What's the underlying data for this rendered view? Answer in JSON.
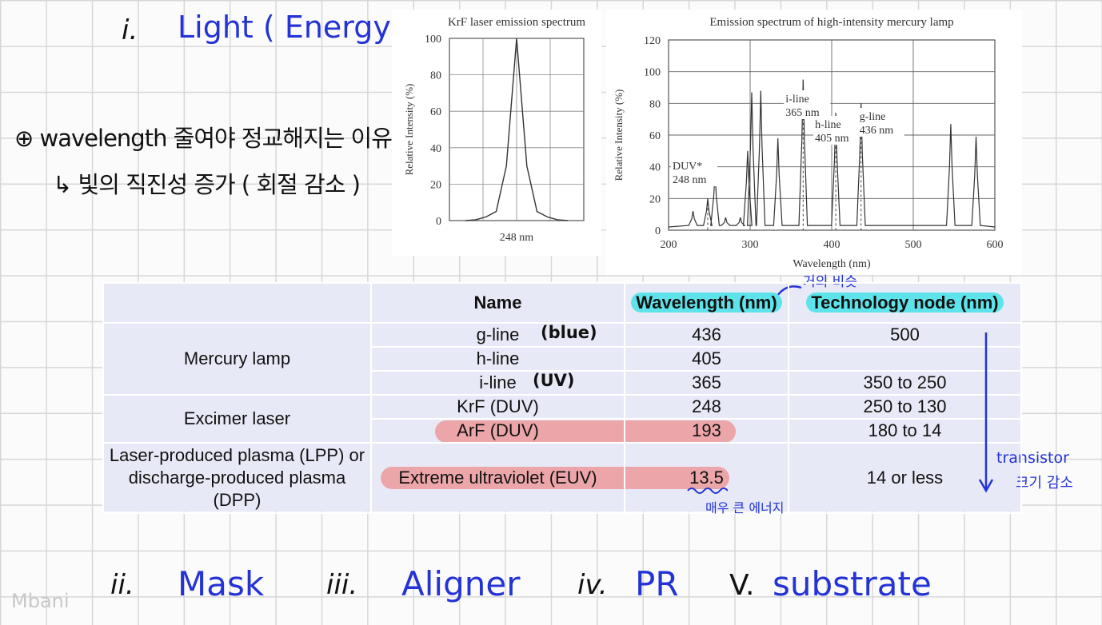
{
  "notes": {
    "heading_1_marker": "i.",
    "heading_1_text": "Light ( Energy )",
    "note_line_1": "⊕ wavelength 줄여야 정교해지는 이유",
    "note_line_2": "↳ 빛의 직진성 증가 ( 회절 감소 )",
    "heading_2_marker": "ii.",
    "heading_2_text": "Mask",
    "heading_3_marker": "iii.",
    "heading_3_text": "Aligner",
    "heading_4_marker": "iv.",
    "heading_4_text": "PR",
    "heading_5_marker": "V.",
    "heading_5_text": "substrate",
    "watermark": "Mbani",
    "annotation_similar": "거의 비슷",
    "annotation_blue": "(blue)",
    "annotation_uv": "(UV)",
    "annotation_energy": "매우 큰 에너지",
    "annotation_transistor_1": "transistor",
    "annotation_transistor_2": "크기 감소"
  },
  "chart_data": [
    {
      "type": "line",
      "title": "KrF  laser emission spectrum",
      "xlabel": "",
      "ylabel": "Relative Intensity (%)",
      "ylim": [
        0,
        100
      ],
      "yticks": [
        0,
        20,
        40,
        60,
        80,
        100
      ],
      "xtick_label": "248 nm",
      "x": [
        0,
        1,
        2,
        3,
        4,
        5,
        6,
        7,
        8,
        9,
        10
      ],
      "series": [
        {
          "values": [
            0,
            0.5,
            2,
            5,
            30,
            100,
            30,
            5,
            2,
            0.5,
            0
          ]
        }
      ],
      "grid": true
    },
    {
      "type": "line",
      "title": "Emission spectrum of high-intensity mercury lamp",
      "xlabel": "Wavelength (nm)",
      "ylabel": "Relative Intensity (%)",
      "xlim": [
        200,
        600
      ],
      "ylim": [
        0,
        120
      ],
      "xticks": [
        200,
        300,
        400,
        500,
        600
      ],
      "yticks": [
        0,
        20,
        40,
        60,
        80,
        100,
        120
      ],
      "grid": true,
      "peaks": [
        {
          "x": 230,
          "y": 12
        },
        {
          "x": 248,
          "y": 20
        },
        {
          "x": 257,
          "y": 36
        },
        {
          "x": 270,
          "y": 8
        },
        {
          "x": 288,
          "y": 8
        },
        {
          "x": 297,
          "y": 50
        },
        {
          "x": 302,
          "y": 87
        },
        {
          "x": 313,
          "y": 88
        },
        {
          "x": 334,
          "y": 58
        },
        {
          "x": 365,
          "y": 95
        },
        {
          "x": 405,
          "y": 74
        },
        {
          "x": 436,
          "y": 80
        },
        {
          "x": 546,
          "y": 67
        },
        {
          "x": 577,
          "y": 59
        }
      ],
      "annotations": [
        {
          "label": "DUV*",
          "label2": "248 nm",
          "x": 248
        },
        {
          "label": "i-line",
          "label2": "365 nm",
          "x": 365
        },
        {
          "label": "h-line",
          "label2": "405 nm",
          "x": 405
        },
        {
          "label": "g-line",
          "label2": "436 nm",
          "x": 436
        }
      ]
    }
  ],
  "table": {
    "headers": [
      "",
      "Name",
      "Wavelength (nm)",
      "Technology node (nm)"
    ],
    "groups": {
      "mercury": "Mercury lamp",
      "excimer": "Excimer laser",
      "plasma": "Laser-produced plasma (LPP) or discharge-produced plasma (DPP)"
    },
    "rows": [
      {
        "name": "g-line",
        "wavelength": "436",
        "node": "500"
      },
      {
        "name": "h-line",
        "wavelength": "405",
        "node": ""
      },
      {
        "name": "i-line",
        "wavelength": "365",
        "node": "350 to 250"
      },
      {
        "name": "KrF (DUV)",
        "wavelength": "248",
        "node": "250 to 130"
      },
      {
        "name": "ArF (DUV)",
        "wavelength": "193",
        "node": "180 to 14"
      },
      {
        "name": "Extreme ultraviolet (EUV)",
        "wavelength": "13.5",
        "node": "14 or less"
      }
    ]
  },
  "colors": {
    "ink_blue": "#2433d6",
    "highlight_cyan": "#5ee3ea",
    "highlight_red": "#ec9a9c",
    "table_bg": "#e8e9f6"
  }
}
